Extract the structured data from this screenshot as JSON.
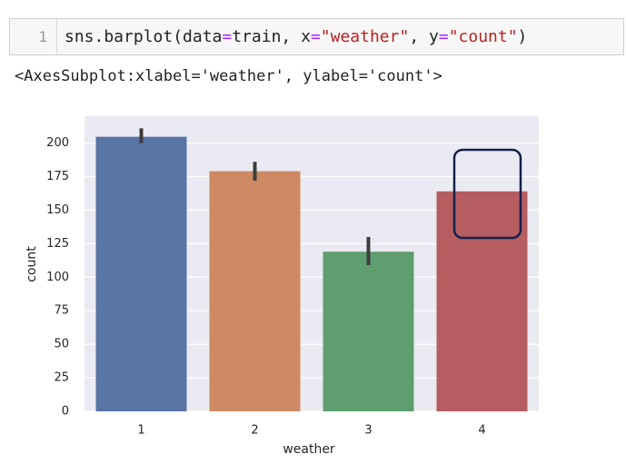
{
  "cell": {
    "line_number": "1",
    "tokens": [
      "sns.barplot(data",
      "=",
      "train, x",
      "=",
      "\"weather\"",
      ", y",
      "=",
      "\"count\"",
      ")"
    ]
  },
  "output": "<AxesSubplot:xlabel='weather', ylabel='count'>",
  "chart_data": {
    "type": "bar",
    "x_label": "weather",
    "y_label": "count",
    "categories": [
      "1",
      "2",
      "3",
      "4"
    ],
    "values": [
      204.7,
      179,
      119,
      164
    ],
    "ci_low": [
      200,
      172,
      109,
      null
    ],
    "ci_high": [
      211,
      186,
      130,
      null
    ],
    "colors": [
      "#5875a4",
      "#cc8963",
      "#5f9e6e",
      "#b55d60"
    ],
    "ylim": [
      0,
      220
    ],
    "yticks": [
      0,
      25,
      50,
      75,
      100,
      125,
      150,
      175,
      200
    ],
    "grid": true
  }
}
